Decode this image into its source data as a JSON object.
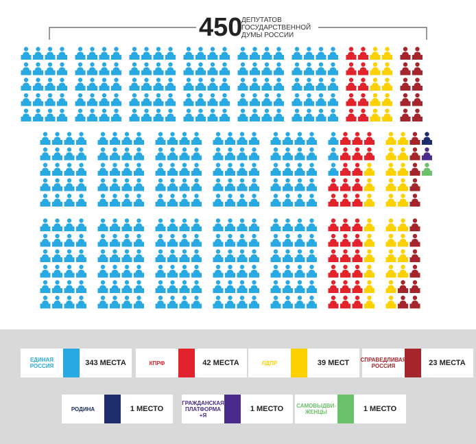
{
  "total": 450,
  "caption": "ДЕПУТАТОВ ГОСУДАРСТВЕННОЙ ДУМЫ РОССИИ",
  "chart_data": {
    "type": "waffle",
    "categories": [
      "ЕДИНАЯ РОССИЯ",
      "КПРФ",
      "ЛДПР",
      "СПРАВЕДЛИВАЯ РОССИЯ",
      "РОДИНА",
      "ГРАЖДАНСКАЯ ПЛАТФОРМА +Я",
      "САМОВЫДВИ-ЖЕНЦЫ"
    ],
    "values": [
      343,
      42,
      39,
      23,
      1,
      1,
      1
    ],
    "value_labels": [
      "343 МЕСТА",
      "42 МЕСТА",
      "39 МЕСТ",
      "23 МЕСТА",
      "1 МЕСТО",
      "1 МЕСТО",
      "1 МЕСТО"
    ],
    "colors": [
      "#29a9e1",
      "#e3232c",
      "#fdd000",
      "#a4262c",
      "#1d2c6b",
      "#4a2c8d",
      "#6cc06a"
    ]
  }
}
